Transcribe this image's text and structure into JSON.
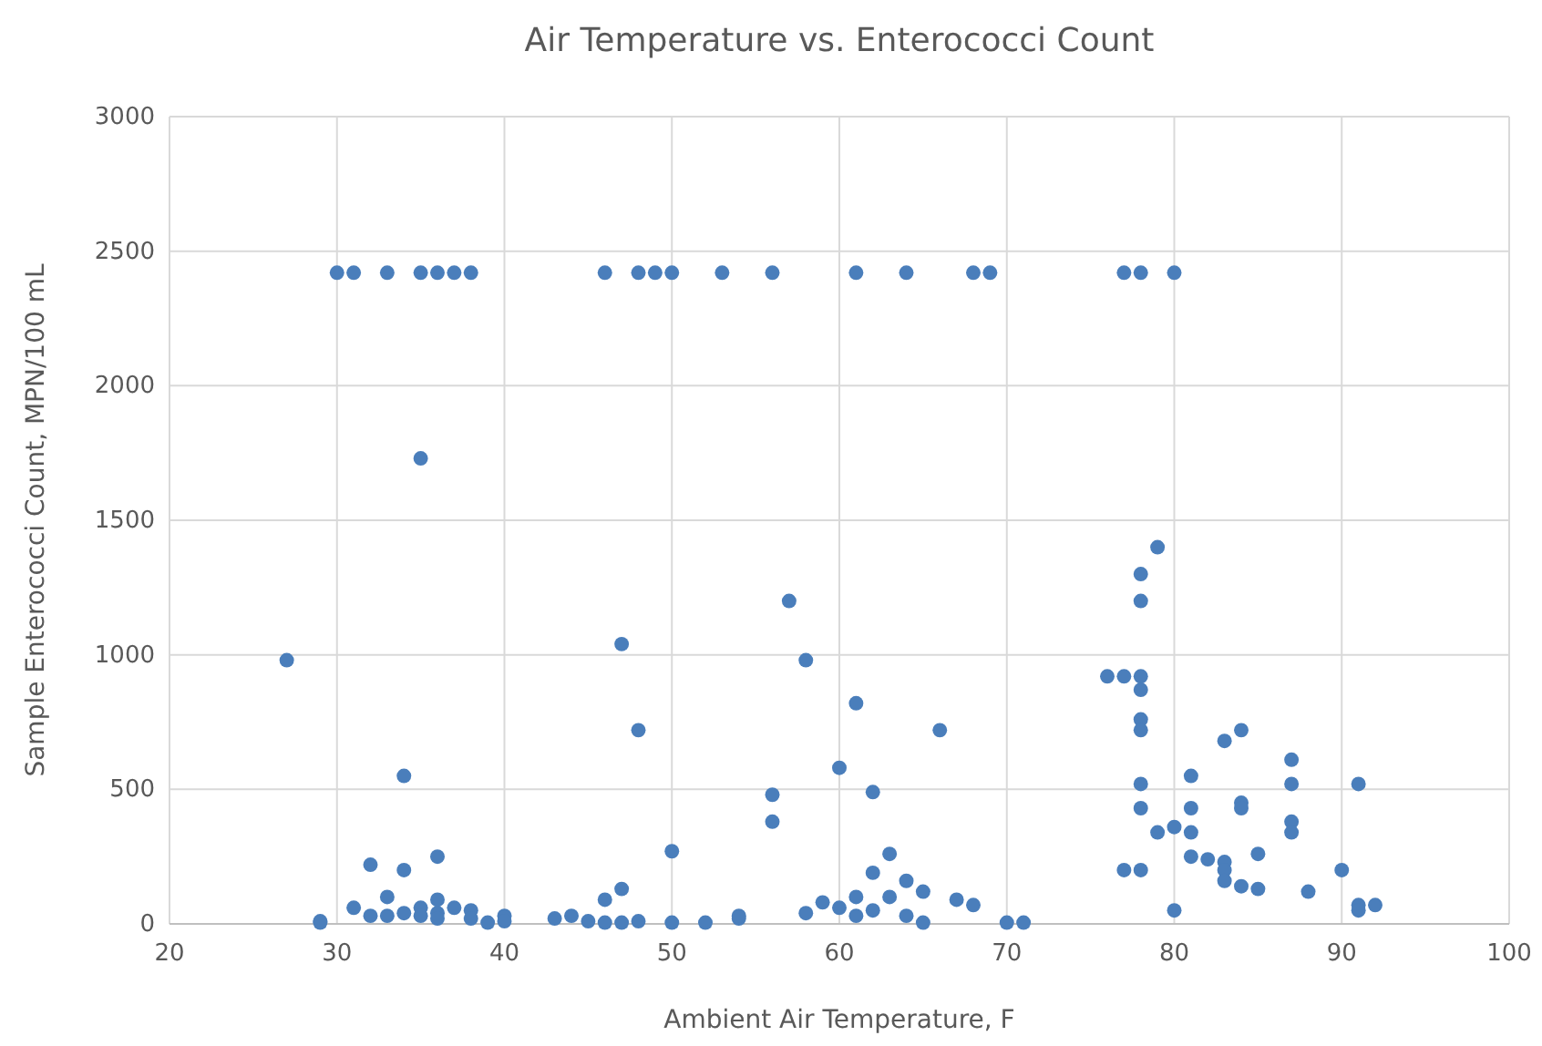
{
  "chart_data": {
    "type": "scatter",
    "title": "Air Temperature vs. Enterococci Count",
    "xlabel": "Ambient Air Temperature, F",
    "ylabel": "Sample Enterococci Count, MPN/100 mL",
    "xlim": [
      20,
      100
    ],
    "xticks": [
      20,
      30,
      40,
      50,
      60,
      70,
      80,
      90,
      100
    ],
    "ylim": [
      0,
      3000
    ],
    "yticks": [
      0,
      500,
      1000,
      1500,
      2000,
      2500,
      3000
    ],
    "grid": true,
    "marker": "circle",
    "series": [
      {
        "color": "#4a7ebb",
        "x": [
          27,
          29,
          29,
          30,
          31,
          33,
          35,
          36,
          37,
          38,
          35,
          34,
          36,
          32,
          33,
          31,
          33,
          34,
          35,
          35,
          36,
          36,
          37,
          38,
          38,
          39,
          40,
          40,
          32,
          34,
          36,
          43,
          44,
          45,
          46,
          46,
          47,
          47,
          48,
          46,
          48,
          49,
          50,
          53,
          56,
          47,
          48,
          50,
          50,
          52,
          54,
          54,
          56,
          56,
          57,
          58,
          58,
          59,
          60,
          60,
          61,
          61,
          61,
          62,
          62,
          62,
          63,
          63,
          64,
          64,
          65,
          65,
          66,
          67,
          68,
          70,
          71,
          61,
          64,
          68,
          69,
          76,
          77,
          77,
          78,
          80,
          78,
          78,
          79,
          78,
          78,
          78,
          78,
          78,
          78,
          77,
          78,
          79,
          80,
          80,
          81,
          81,
          81,
          81,
          82,
          83,
          83,
          83,
          83,
          84,
          84,
          84,
          84,
          85,
          85,
          87,
          87,
          87,
          87,
          88,
          90,
          91,
          91,
          91,
          92
        ],
        "values": [
          980,
          10,
          5,
          2420,
          2420,
          2420,
          2420,
          2420,
          2420,
          2420,
          1730,
          550,
          250,
          220,
          100,
          60,
          30,
          200,
          60,
          30,
          90,
          40,
          60,
          50,
          20,
          5,
          30,
          10,
          30,
          40,
          20,
          20,
          30,
          10,
          90,
          5,
          130,
          5,
          10,
          2420,
          2420,
          2420,
          2420,
          2420,
          2420,
          1040,
          720,
          270,
          5,
          5,
          20,
          30,
          480,
          380,
          1200,
          980,
          40,
          80,
          580,
          60,
          820,
          100,
          30,
          490,
          190,
          50,
          260,
          100,
          160,
          30,
          120,
          5,
          720,
          90,
          70,
          5,
          5,
          2420,
          2420,
          2420,
          2420,
          920,
          920,
          2420,
          2420,
          2420,
          1300,
          1200,
          1400,
          920,
          870,
          760,
          720,
          520,
          430,
          200,
          200,
          340,
          360,
          50,
          340,
          550,
          430,
          250,
          240,
          230,
          200,
          160,
          680,
          720,
          450,
          430,
          140,
          260,
          130,
          610,
          520,
          380,
          340,
          120,
          200,
          520,
          70,
          50,
          70
        ]
      }
    ]
  }
}
